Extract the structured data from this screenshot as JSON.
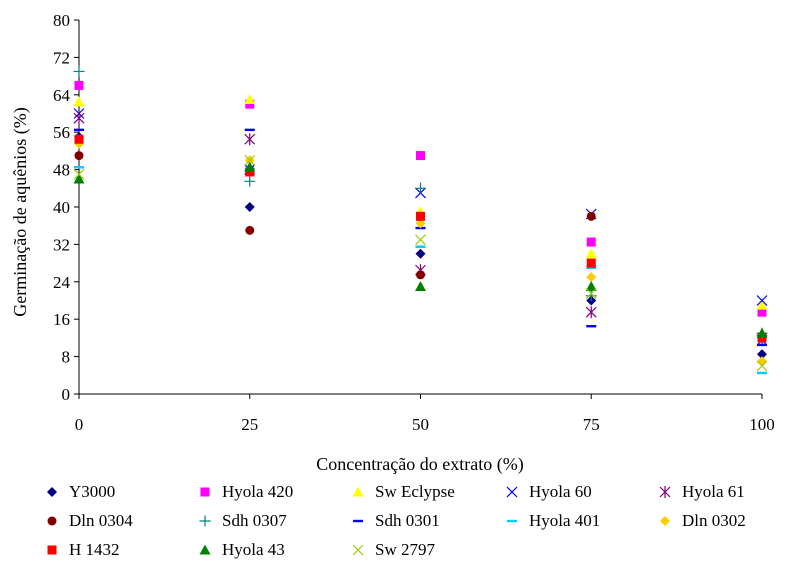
{
  "chart_data": {
    "type": "scatter",
    "title": "",
    "xlabel": "Concentração do extrato (%)",
    "ylabel": "Germinação de aquênios (%)",
    "x": [
      0,
      25,
      50,
      75,
      100
    ],
    "xlim": [
      0,
      100
    ],
    "ylim": [
      0,
      80
    ],
    "xticks": [
      0,
      25,
      50,
      75,
      100
    ],
    "yticks": [
      0,
      8,
      16,
      24,
      32,
      40,
      48,
      56,
      64,
      72,
      80
    ],
    "grid": false,
    "legend_position": "bottom",
    "series": [
      {
        "name": "Y3000",
        "marker": "diamond",
        "color": "#000080",
        "values": [
          55,
          40,
          30,
          20,
          8.5
        ]
      },
      {
        "name": "Hyola 420",
        "marker": "square",
        "color": "#ff00ff",
        "values": [
          66,
          62,
          51,
          32.5,
          17.5
        ]
      },
      {
        "name": "Sw Eclypse",
        "marker": "triangle",
        "color": "#ffff00",
        "values": [
          62.5,
          63,
          39,
          30,
          19
        ]
      },
      {
        "name": "Hyola 60",
        "marker": "x",
        "color": "#0000ff",
        "values": [
          60,
          48,
          43,
          38.5,
          20
        ]
      },
      {
        "name": "Hyola 61",
        "marker": "star",
        "color": "#800080",
        "values": [
          59,
          54.5,
          26.5,
          17.5,
          11.5
        ]
      },
      {
        "name": "Dln 0304",
        "marker": "circle",
        "color": "#800000",
        "values": [
          51,
          35,
          25.5,
          38,
          12
        ]
      },
      {
        "name": "Sdh 0307",
        "marker": "plus",
        "color": "#008080",
        "values": [
          69,
          45.5,
          44,
          21,
          13
        ]
      },
      {
        "name": "Sdh 0301",
        "marker": "dash",
        "color": "#0000ff",
        "values": [
          56.5,
          56.5,
          35.5,
          14.5,
          10.5
        ]
      },
      {
        "name": "Hyola 401",
        "marker": "dash",
        "color": "#00ccff",
        "values": [
          48.5,
          48,
          31.5,
          27,
          4.5
        ]
      },
      {
        "name": "Dln 0302",
        "marker": "diamond",
        "color": "#ffcc00",
        "values": [
          53.5,
          50,
          36.5,
          25,
          7
        ]
      },
      {
        "name": "H 1432",
        "marker": "square",
        "color": "#ff0000",
        "values": [
          54.5,
          47.5,
          38,
          28,
          12
        ]
      },
      {
        "name": "Hyola 43",
        "marker": "triangle",
        "color": "#008000",
        "values": [
          46,
          48.5,
          23,
          23,
          13
        ]
      },
      {
        "name": "Sw 2797",
        "marker": "x",
        "color": "#99cc00",
        "values": [
          47,
          50,
          33,
          21.5,
          6
        ]
      }
    ]
  }
}
